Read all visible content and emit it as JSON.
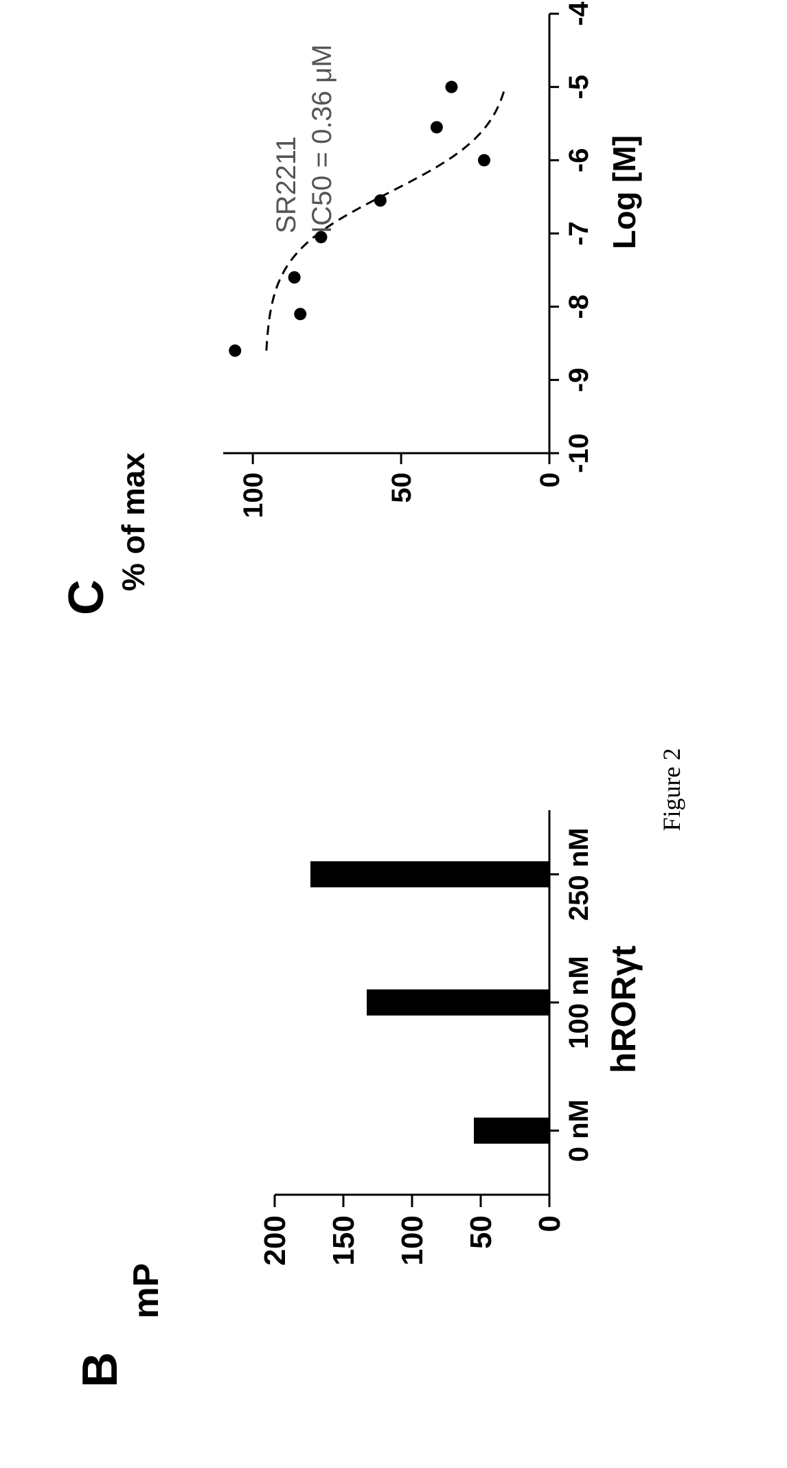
{
  "figure_caption": "Figure 2",
  "chart_data": [
    {
      "type": "bar",
      "panel_letter": "B",
      "title": "",
      "categories": [
        "0 nM",
        "100 nM",
        "250 nM"
      ],
      "values": [
        55,
        133,
        174
      ],
      "xlabel": "hRORγt",
      "ylabel": "mP",
      "ylim": [
        0,
        200
      ],
      "yticks": [
        "0",
        "50",
        "100",
        "150",
        "200"
      ],
      "bar_color": "#000000",
      "grid": false
    },
    {
      "type": "scatter",
      "panel_letter": "C",
      "title": "",
      "xlabel": "Log [M]",
      "ylabel": "% of max",
      "xlim": [
        -10,
        -4
      ],
      "ylim": [
        0,
        110
      ],
      "xticks": [
        "-10",
        "-9",
        "-8",
        "-7",
        "-6",
        "-5",
        "-4"
      ],
      "yticks": [
        "0",
        "50",
        "100"
      ],
      "annotation": [
        "SR2211",
        "IC50 = 0.36 μM"
      ],
      "points": [
        {
          "x": -8.6,
          "y": 106
        },
        {
          "x": -8.1,
          "y": 84
        },
        {
          "x": -7.6,
          "y": 86
        },
        {
          "x": -7.05,
          "y": 77
        },
        {
          "x": -6.55,
          "y": 57
        },
        {
          "x": -6.0,
          "y": 22
        },
        {
          "x": -5.55,
          "y": 38
        },
        {
          "x": -5.0,
          "y": 33
        }
      ],
      "fit_curve": {
        "style": "dashed",
        "model": "sigmoid",
        "top": 96,
        "bottom": 12,
        "log_ic50": -6.44,
        "hill": 1.0,
        "x_range": [
          -8.6,
          -5.0
        ]
      },
      "grid": false
    }
  ]
}
